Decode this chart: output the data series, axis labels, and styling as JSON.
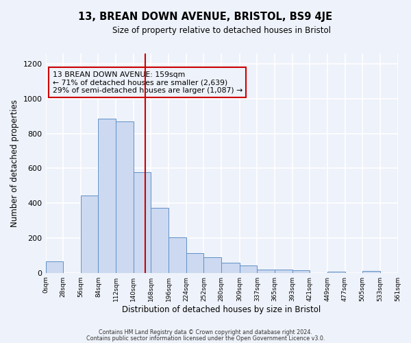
{
  "title": "13, BREAN DOWN AVENUE, BRISTOL, BS9 4JE",
  "subtitle": "Size of property relative to detached houses in Bristol",
  "xlabel": "Distribution of detached houses by size in Bristol",
  "ylabel": "Number of detached properties",
  "bin_edges": [
    0,
    28,
    56,
    84,
    112,
    140,
    168,
    196,
    224,
    252,
    280,
    309,
    337,
    365,
    393,
    421,
    449,
    477,
    505,
    533,
    561
  ],
  "bar_heights": [
    65,
    0,
    445,
    885,
    870,
    580,
    375,
    205,
    115,
    90,
    57,
    43,
    20,
    18,
    15,
    0,
    5,
    0,
    10,
    0
  ],
  "bar_color": "#ccd9f0",
  "bar_edge_color": "#6090c8",
  "vline_x": 159,
  "vline_color": "#cc0000",
  "annotation_line1": "13 BREAN DOWN AVENUE: 159sqm",
  "annotation_line2": "← 71% of detached houses are smaller (2,639)",
  "annotation_line3": "29% of semi-detached houses are larger (1,087) →",
  "annotation_box_color": "#cc0000",
  "ylim": [
    0,
    1260
  ],
  "yticks": [
    0,
    200,
    400,
    600,
    800,
    1000,
    1200
  ],
  "background_color": "#eef2fa",
  "grid_color": "#ffffff",
  "footer_line1": "Contains HM Land Registry data © Crown copyright and database right 2024.",
  "footer_line2": "Contains public sector information licensed under the Open Government Licence v3.0."
}
